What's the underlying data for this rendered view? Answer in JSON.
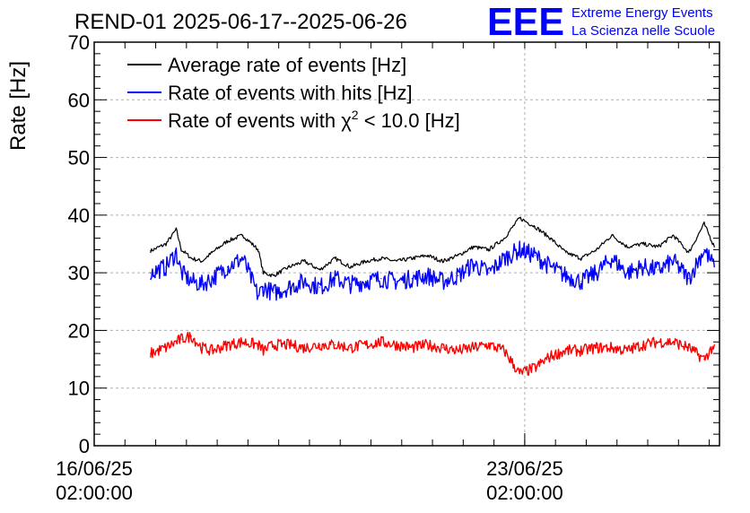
{
  "header": {
    "title": "REND-01 2025-06-17--2025-06-26",
    "logo_text": "EEE",
    "org_line1": "Extreme Energy Events",
    "org_line2": "La Scienza nelle Scuole"
  },
  "colors": {
    "average": "#000000",
    "hits": "#0000ff",
    "chi2": "#ff0000",
    "brand": "#0000ff",
    "grid": "#b0b0b0"
  },
  "chart_data": {
    "type": "line",
    "title": "REND-01 2025-06-17--2025-06-26",
    "ylabel": "Rate [Hz]",
    "xlabel": "",
    "ylim": [
      0,
      70
    ],
    "yticks": [
      0,
      10,
      20,
      30,
      40,
      50,
      60,
      70
    ],
    "xlim": [
      "2025-06-16 02:00:00",
      "2025-06-26 06:00:00"
    ],
    "xticks": [
      {
        "value": "2025-06-16 02:00:00",
        "line1": "16/06/25",
        "line2": "02:00:00"
      },
      {
        "value": "2025-06-23 02:00:00",
        "line1": "23/06/25",
        "line2": "02:00:00"
      }
    ],
    "grid": true,
    "legend_position": "top-left",
    "legend": [
      {
        "label": "Average rate of events [Hz]"
      },
      {
        "label": "Rate of events with hits [Hz]"
      },
      {
        "label_prefix": "Rate of events with ",
        "symbol": "χ",
        "superscript": "2",
        "label_suffix": " < 10.0 [Hz]"
      }
    ],
    "x": [
      "2025-06-17 00:00",
      "2025-06-17 06:00",
      "2025-06-17 10:00",
      "2025-06-17 12:00",
      "2025-06-17 16:00",
      "2025-06-17 20:00",
      "2025-06-18 00:00",
      "2025-06-18 06:00",
      "2025-06-18 12:00",
      "2025-06-18 18:00",
      "2025-06-18 20:00",
      "2025-06-19 00:00",
      "2025-06-19 06:00",
      "2025-06-19 12:00",
      "2025-06-19 18:00",
      "2025-06-20 00:00",
      "2025-06-20 06:00",
      "2025-06-20 12:00",
      "2025-06-20 18:00",
      "2025-06-21 00:00",
      "2025-06-21 06:00",
      "2025-06-21 12:00",
      "2025-06-21 18:00",
      "2025-06-22 00:00",
      "2025-06-22 06:00",
      "2025-06-22 12:00",
      "2025-06-22 18:00",
      "2025-06-23 00:00",
      "2025-06-23 06:00",
      "2025-06-23 12:00",
      "2025-06-23 18:00",
      "2025-06-24 00:00",
      "2025-06-24 06:00",
      "2025-06-24 12:00",
      "2025-06-24 18:00",
      "2025-06-25 00:00",
      "2025-06-25 06:00",
      "2025-06-25 12:00",
      "2025-06-25 18:00",
      "2025-06-26 00:00",
      "2025-06-26 04:00"
    ],
    "series": [
      {
        "name": "Average rate of events [Hz]",
        "color": "#000000",
        "values": [
          33.8,
          35.0,
          37.5,
          34.0,
          32.5,
          32.0,
          33.5,
          35.5,
          36.5,
          34.0,
          30.0,
          29.5,
          31.0,
          32.0,
          30.5,
          32.5,
          31.0,
          32.0,
          32.5,
          32.0,
          32.5,
          33.0,
          32.0,
          33.0,
          34.5,
          34.0,
          36.0,
          39.5,
          38.0,
          36.0,
          33.5,
          32.5,
          34.0,
          36.5,
          34.5,
          35.0,
          34.5,
          36.5,
          33.5,
          38.5,
          34.5
        ]
      },
      {
        "name": "Rate of events with hits [Hz]",
        "color": "#0000ff",
        "values": [
          30.0,
          31.0,
          33.5,
          30.0,
          28.5,
          28.0,
          29.0,
          31.0,
          32.5,
          26.0,
          27.5,
          26.5,
          27.5,
          28.5,
          27.5,
          29.0,
          28.0,
          28.5,
          29.0,
          28.5,
          29.0,
          29.5,
          28.5,
          29.5,
          31.5,
          30.0,
          32.5,
          34.0,
          33.0,
          31.0,
          29.5,
          28.5,
          30.0,
          32.5,
          30.0,
          31.0,
          30.5,
          32.0,
          29.0,
          34.0,
          31.0
        ]
      },
      {
        "name": "Rate of events with χ2 < 10.0 [Hz]",
        "color": "#ff0000",
        "values": [
          16.0,
          17.0,
          18.0,
          18.5,
          19.0,
          17.0,
          16.5,
          17.5,
          18.0,
          17.5,
          16.5,
          17.5,
          17.5,
          17.0,
          17.5,
          17.5,
          17.0,
          17.5,
          18.0,
          17.5,
          17.0,
          17.5,
          17.0,
          16.5,
          17.0,
          17.5,
          16.5,
          12.5,
          13.5,
          15.5,
          16.5,
          16.5,
          17.0,
          17.0,
          16.5,
          17.5,
          18.0,
          18.0,
          17.0,
          15.0,
          17.5
        ]
      }
    ]
  }
}
